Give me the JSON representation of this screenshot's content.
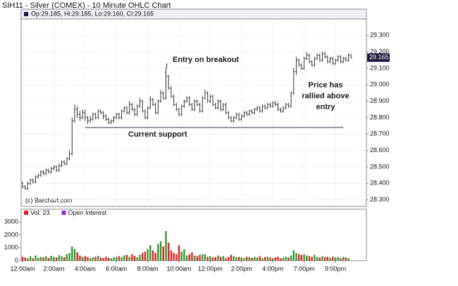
{
  "chart_data": [
    {
      "type": "ohlc",
      "title": "SIH11 - Silver (COMEX) - 10 Minute OHLC Chart",
      "info_text": "Op:29.185, Hi:29.185, Lo:29.160, Cl:29.165",
      "credit": "(c) Barchart.com",
      "color": "#333333",
      "grid": true,
      "categories": [
        "12:00am",
        null,
        null,
        null,
        null,
        null,
        null,
        null,
        null,
        null,
        null,
        null,
        "2:00am",
        null,
        null,
        null,
        null,
        null,
        null,
        null,
        null,
        null,
        null,
        null,
        "4:00am",
        null,
        null,
        null,
        null,
        null,
        null,
        null,
        null,
        null,
        null,
        null,
        "6:00am",
        null,
        null,
        null,
        null,
        null,
        null,
        null,
        null,
        null,
        null,
        null,
        "8:00am",
        null,
        null,
        null,
        null,
        null,
        null,
        null,
        null,
        null,
        null,
        null,
        "10:00am",
        null,
        null,
        null,
        null,
        null,
        null,
        null,
        null,
        null,
        null,
        null,
        "12:00pm",
        null,
        null,
        null,
        null,
        null,
        null,
        null,
        null,
        null,
        null,
        null,
        "2:00pm",
        null,
        null,
        null,
        null,
        null,
        null,
        null,
        null,
        null,
        null,
        null,
        "4:00pm",
        null,
        null,
        null,
        null,
        null,
        null,
        null,
        null,
        null,
        null,
        null,
        "7:00pm",
        null,
        null,
        null,
        null,
        null,
        null,
        null,
        null,
        null,
        null,
        null,
        "9:00pm",
        null,
        null,
        null,
        null,
        null,
        null
      ],
      "open": [
        28.4,
        28.38,
        28.37,
        28.4,
        28.42,
        28.41,
        28.44,
        28.45,
        28.47,
        28.46,
        28.48,
        28.47,
        28.49,
        28.5,
        28.48,
        28.51,
        28.53,
        28.52,
        28.55,
        28.58,
        28.78,
        28.85,
        28.82,
        28.8,
        28.83,
        28.8,
        28.78,
        28.79,
        28.82,
        28.8,
        28.84,
        28.83,
        28.81,
        28.79,
        28.77,
        28.78,
        28.8,
        28.82,
        28.8,
        28.84,
        28.86,
        28.83,
        28.88,
        28.85,
        28.82,
        28.87,
        28.9,
        28.84,
        28.8,
        28.86,
        28.91,
        28.88,
        28.83,
        28.9,
        28.95,
        28.92,
        29.05,
        28.98,
        28.93,
        28.88,
        28.85,
        28.82,
        28.87,
        28.9,
        28.92,
        28.88,
        28.85,
        28.9,
        28.88,
        28.84,
        28.92,
        28.95,
        28.9,
        28.93,
        28.88,
        28.86,
        28.9,
        28.85,
        28.88,
        28.83,
        28.8,
        28.78,
        28.8,
        28.82,
        28.79,
        28.81,
        28.83,
        28.82,
        28.84,
        28.83,
        28.85,
        28.86,
        28.84,
        28.87,
        28.86,
        28.88,
        28.87,
        28.89,
        28.88,
        28.85,
        28.84,
        28.86,
        28.88,
        28.87,
        28.95,
        29.08,
        29.15,
        29.12,
        29.1,
        29.16,
        29.18,
        29.14,
        29.12,
        29.16,
        29.18,
        29.15,
        29.19,
        29.17,
        29.14,
        29.16,
        29.13,
        29.15,
        29.17,
        29.14,
        29.16,
        29.15,
        29.185
      ],
      "high": [
        28.41,
        28.39,
        28.41,
        28.43,
        28.43,
        28.45,
        28.46,
        28.48,
        28.48,
        28.49,
        28.49,
        28.5,
        28.51,
        28.51,
        28.52,
        28.54,
        28.54,
        28.56,
        28.6,
        28.8,
        28.88,
        28.87,
        28.84,
        28.85,
        28.85,
        28.81,
        28.81,
        28.83,
        28.83,
        28.85,
        28.85,
        28.84,
        28.82,
        28.8,
        28.79,
        28.81,
        28.83,
        28.83,
        28.85,
        28.87,
        28.87,
        28.9,
        28.89,
        28.86,
        28.88,
        28.92,
        28.91,
        28.85,
        28.87,
        28.93,
        28.92,
        28.89,
        28.91,
        28.97,
        28.96,
        29.08,
        29.06,
        28.99,
        28.94,
        28.89,
        28.86,
        28.88,
        28.91,
        28.93,
        28.93,
        28.89,
        28.91,
        28.91,
        28.89,
        28.93,
        28.97,
        28.96,
        28.94,
        28.94,
        28.89,
        28.91,
        28.91,
        28.89,
        28.89,
        28.84,
        28.81,
        28.81,
        28.83,
        28.83,
        28.82,
        28.84,
        28.84,
        28.85,
        28.85,
        28.86,
        28.87,
        28.87,
        28.88,
        28.88,
        28.89,
        28.89,
        28.9,
        28.9,
        28.89,
        28.86,
        28.87,
        28.89,
        28.89,
        28.96,
        29.1,
        29.17,
        29.16,
        29.13,
        29.17,
        29.2,
        29.19,
        29.15,
        29.17,
        29.19,
        29.19,
        29.2,
        29.2,
        29.18,
        29.17,
        29.17,
        29.16,
        29.18,
        29.18,
        29.17,
        29.17,
        29.19,
        29.185
      ],
      "low": [
        28.37,
        28.36,
        28.36,
        28.39,
        28.4,
        28.4,
        28.43,
        28.44,
        28.45,
        28.45,
        28.46,
        28.46,
        28.48,
        28.47,
        28.47,
        28.5,
        28.51,
        28.51,
        28.54,
        28.57,
        28.77,
        28.8,
        28.78,
        28.79,
        28.78,
        28.76,
        28.77,
        28.78,
        28.79,
        28.79,
        28.82,
        28.79,
        28.78,
        28.76,
        28.76,
        28.77,
        28.79,
        28.79,
        28.79,
        28.83,
        28.82,
        28.82,
        28.84,
        28.81,
        28.81,
        28.86,
        28.83,
        28.79,
        28.79,
        28.85,
        28.87,
        28.82,
        28.82,
        28.89,
        28.91,
        28.91,
        28.97,
        28.92,
        28.87,
        28.84,
        28.81,
        28.81,
        28.86,
        28.89,
        28.87,
        28.84,
        28.84,
        28.87,
        28.83,
        28.83,
        28.91,
        28.89,
        28.89,
        28.87,
        28.85,
        28.85,
        28.84,
        28.84,
        28.82,
        28.79,
        28.77,
        28.77,
        28.79,
        28.78,
        28.78,
        28.8,
        28.81,
        28.81,
        28.82,
        28.82,
        28.84,
        28.83,
        28.83,
        28.85,
        28.85,
        28.86,
        28.86,
        28.87,
        28.84,
        28.83,
        28.83,
        28.85,
        28.86,
        28.86,
        28.94,
        29.06,
        29.11,
        29.09,
        29.09,
        29.15,
        29.13,
        29.11,
        29.11,
        29.15,
        29.14,
        29.14,
        29.16,
        29.13,
        29.13,
        29.12,
        29.12,
        29.14,
        29.13,
        29.13,
        29.14,
        29.14,
        29.16
      ],
      "close": [
        28.38,
        28.37,
        28.4,
        28.42,
        28.41,
        28.44,
        28.45,
        28.47,
        28.46,
        28.48,
        28.47,
        28.49,
        28.5,
        28.48,
        28.51,
        28.53,
        28.52,
        28.55,
        28.58,
        28.78,
        28.85,
        28.82,
        28.8,
        28.83,
        28.8,
        28.78,
        28.79,
        28.82,
        28.8,
        28.84,
        28.83,
        28.81,
        28.79,
        28.77,
        28.78,
        28.8,
        28.82,
        28.8,
        28.84,
        28.86,
        28.83,
        28.88,
        28.85,
        28.82,
        28.87,
        28.9,
        28.84,
        28.8,
        28.86,
        28.91,
        28.88,
        28.83,
        28.9,
        28.95,
        28.92,
        29.05,
        28.98,
        28.93,
        28.88,
        28.85,
        28.82,
        28.87,
        28.9,
        28.92,
        28.88,
        28.85,
        28.9,
        28.88,
        28.84,
        28.92,
        28.95,
        28.9,
        28.93,
        28.88,
        28.86,
        28.9,
        28.85,
        28.88,
        28.83,
        28.8,
        28.78,
        28.8,
        28.82,
        28.79,
        28.81,
        28.83,
        28.82,
        28.84,
        28.83,
        28.85,
        28.86,
        28.84,
        28.87,
        28.86,
        28.88,
        28.87,
        28.89,
        28.88,
        28.85,
        28.84,
        28.86,
        28.88,
        28.87,
        28.95,
        29.08,
        29.15,
        29.12,
        29.1,
        29.16,
        29.18,
        29.14,
        29.12,
        29.16,
        29.18,
        29.15,
        29.19,
        29.17,
        29.14,
        29.16,
        29.13,
        29.15,
        29.17,
        29.14,
        29.16,
        29.15,
        29.18,
        29.165
      ],
      "ylim": [
        28.26,
        29.4
      ],
      "yticks": [
        {
          "value": 28.3,
          "label": "28.300"
        },
        {
          "value": 28.4,
          "label": "28.400"
        },
        {
          "value": 28.5,
          "label": "28.500"
        },
        {
          "value": 28.6,
          "label": "28.600"
        },
        {
          "value": 28.7,
          "label": "28.700"
        },
        {
          "value": 28.8,
          "label": "28.800"
        },
        {
          "value": 28.9,
          "label": "28.900"
        },
        {
          "value": 29.0,
          "label": "29.000"
        },
        {
          "value": 29.1,
          "label": "29.100"
        },
        {
          "value": 29.2,
          "label": "29.200"
        },
        {
          "value": 29.3,
          "label": "29.300"
        }
      ],
      "last_price": {
        "value": 29.165,
        "label": "29.165"
      },
      "support_level": 28.74,
      "annotations": {
        "entry": "Entry on breakout",
        "support": "Current support",
        "rally": [
          "Price has",
          "rallied above",
          "entry"
        ]
      }
    },
    {
      "type": "bar",
      "legend": [
        "Vol: 23",
        "Open Interest"
      ],
      "legend_colors": [
        "#e02020",
        "#8a2be2"
      ],
      "up_color": "#2e9a2e",
      "down_color": "#e02020",
      "values": [
        300,
        250,
        200,
        350,
        180,
        400,
        220,
        300,
        260,
        350,
        200,
        380,
        300,
        250,
        420,
        350,
        280,
        500,
        600,
        1100,
        900,
        650,
        400,
        300,
        350,
        280,
        200,
        260,
        300,
        380,
        250,
        200,
        300,
        220,
        180,
        260,
        300,
        350,
        280,
        400,
        450,
        300,
        500,
        380,
        260,
        450,
        600,
        700,
        900,
        1200,
        800,
        600,
        1300,
        1500,
        1100,
        2300,
        1400,
        800,
        600,
        500,
        1200,
        700,
        900,
        400,
        500,
        650,
        400,
        350,
        450,
        500,
        500,
        300,
        350,
        250,
        280,
        400,
        300,
        350,
        200,
        300,
        450,
        350,
        280,
        300,
        250,
        200,
        300,
        280,
        220,
        300,
        250,
        350,
        200,
        280,
        300,
        250,
        200,
        260,
        300,
        180,
        220,
        300,
        250,
        400,
        800,
        600,
        500,
        450,
        500,
        400,
        350,
        300,
        450,
        300,
        250,
        350,
        280,
        300,
        220,
        300,
        250,
        280,
        200,
        300,
        250,
        200,
        23
      ],
      "ylim": [
        0,
        4000
      ],
      "yticks": [
        0,
        1000,
        2000,
        3000
      ]
    }
  ]
}
